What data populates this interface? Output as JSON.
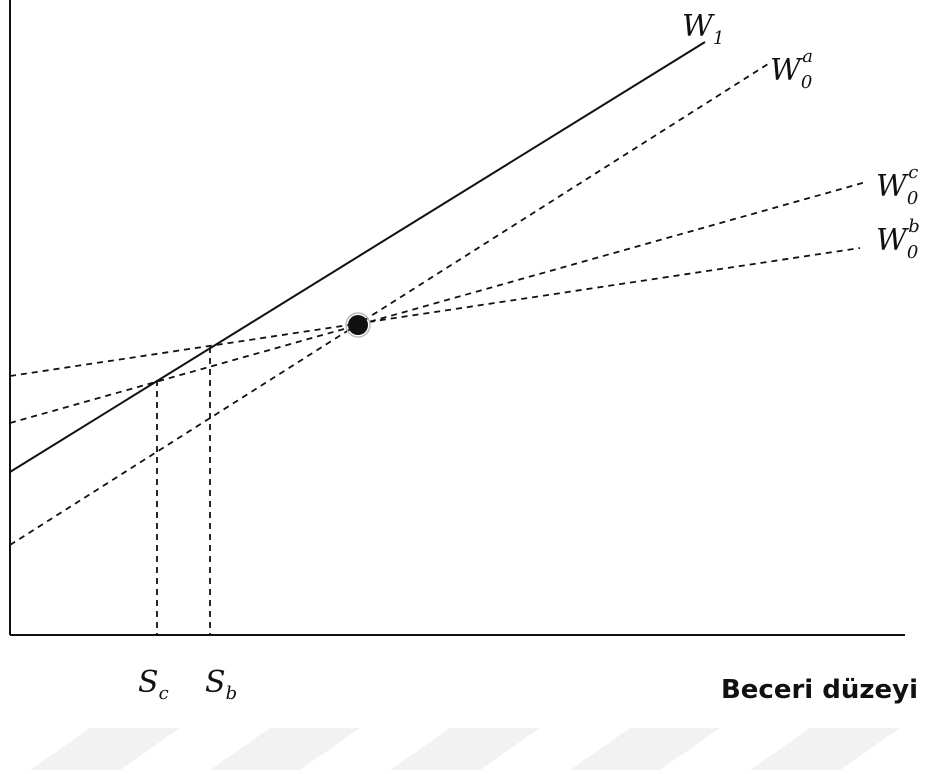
{
  "curves": {
    "w1": {
      "base": "W",
      "sub": "1",
      "sup": ""
    },
    "w0a": {
      "base": "W",
      "sub": "0",
      "sup": "a"
    },
    "w0c": {
      "base": "W",
      "sub": "0",
      "sup": "c"
    },
    "w0b": {
      "base": "W",
      "sub": "0",
      "sup": "b"
    }
  },
  "x_ticks": {
    "sc": {
      "base": "S",
      "sub": "c"
    },
    "sb": {
      "base": "S",
      "sub": "b"
    }
  },
  "x_axis_title": "Beceri düzeyi",
  "colors": {
    "ink": "#111111",
    "watermark": "#f2f2f2"
  }
}
